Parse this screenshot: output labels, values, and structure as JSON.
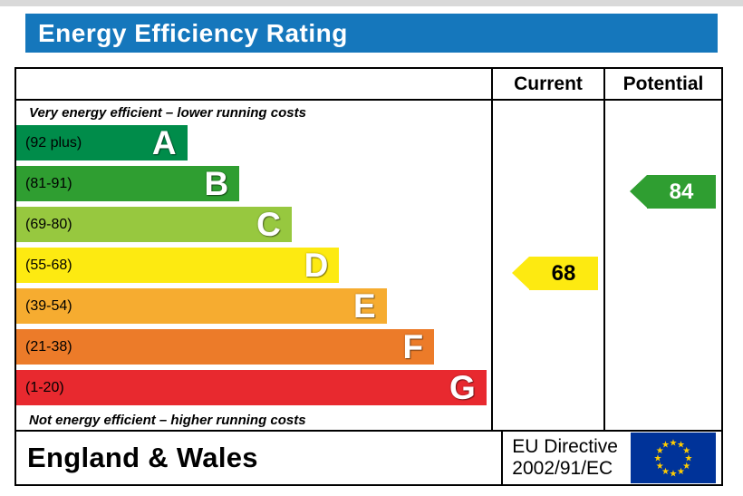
{
  "title": "Energy Efficiency Rating",
  "title_bar_color": "#1577bc",
  "columns": {
    "current": "Current",
    "potential": "Potential"
  },
  "notes": {
    "top": "Very energy efficient – lower running costs",
    "bottom": "Not energy efficient – higher running costs"
  },
  "chart_data": {
    "type": "bar",
    "title": "Energy Efficiency Rating",
    "bands": [
      {
        "letter": "A",
        "range": "(92 plus)",
        "color": "#008c4a",
        "width_pct": 36
      },
      {
        "letter": "B",
        "range": "(81-91)",
        "color": "#2f9e31",
        "width_pct": 47
      },
      {
        "letter": "C",
        "range": "(69-80)",
        "color": "#97c83f",
        "width_pct": 58
      },
      {
        "letter": "D",
        "range": "(55-68)",
        "color": "#fdea11",
        "width_pct": 68
      },
      {
        "letter": "E",
        "range": "(39-54)",
        "color": "#f6ac30",
        "width_pct": 78
      },
      {
        "letter": "F",
        "range": "(21-38)",
        "color": "#ec7b29",
        "width_pct": 88
      },
      {
        "letter": "G",
        "range": "(1-20)",
        "color": "#e8292f",
        "width_pct": 99
      }
    ],
    "current": {
      "value": 68,
      "band": "D",
      "color": "#fdea11",
      "text_color": "#000000"
    },
    "potential": {
      "value": 84,
      "band": "B",
      "color": "#2f9e31",
      "text_color": "#ffffff"
    }
  },
  "footer": {
    "region": "England & Wales",
    "directive_line1": "EU Directive",
    "directive_line2": "2002/91/EC",
    "flag": {
      "field": "#003399",
      "stars": "#ffcc00"
    }
  }
}
